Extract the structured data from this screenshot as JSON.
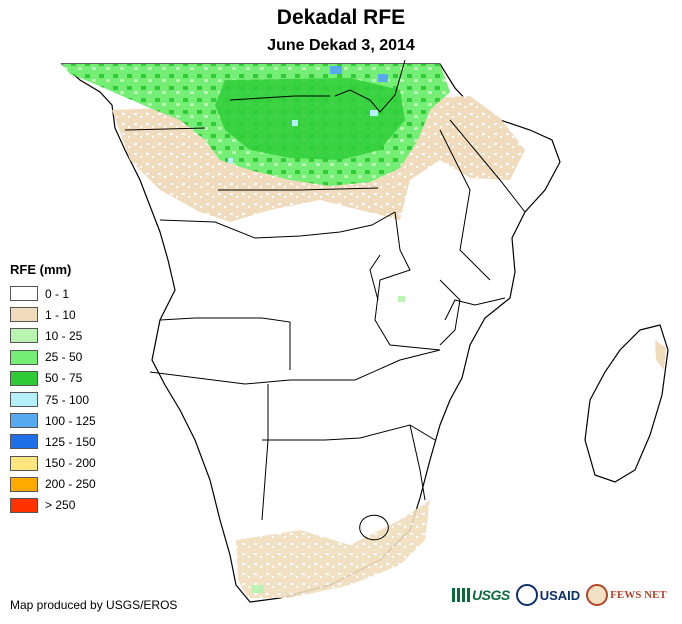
{
  "header": {
    "title": "Dekadal RFE",
    "subtitle": "June Dekad 3, 2014"
  },
  "legend": {
    "title": "RFE (mm)",
    "items": [
      {
        "label": "0 - 1",
        "color": "#ffffff"
      },
      {
        "label": "1 - 10",
        "color": "#f0dcbc"
      },
      {
        "label": "10 - 25",
        "color": "#b9f5b0"
      },
      {
        "label": "25 - 50",
        "color": "#74ee74"
      },
      {
        "label": "50 - 75",
        "color": "#2fcc38"
      },
      {
        "label": "75 - 100",
        "color": "#b5f0fa"
      },
      {
        "label": "100 - 125",
        "color": "#57aaf0"
      },
      {
        "label": "125 - 150",
        "color": "#1f70e6"
      },
      {
        "label": "150 - 200",
        "color": "#ffe580"
      },
      {
        "label": "200 - 250",
        "color": "#ffaa00"
      },
      {
        "label": "> 250",
        "color": "#ff3300"
      }
    ]
  },
  "footer": {
    "credit": "Map produced by USGS/EROS",
    "logos": {
      "usgs": "USGS",
      "usaid": "USAID",
      "fewsnet": "FEWS NET"
    }
  },
  "map_data": {
    "region": "Southern Africa",
    "rainfall_zones": [
      {
        "range": "50 - 75",
        "area": "northern Congo basin / Central African Republic"
      },
      {
        "range": "25 - 50",
        "area": "equatorial belt"
      },
      {
        "range": "1 - 10",
        "area": "southern fringe of equatorial belt, East Africa coast, South Africa south coast"
      },
      {
        "range": "100 - 125",
        "area": "scattered cells along northern edge"
      }
    ]
  }
}
